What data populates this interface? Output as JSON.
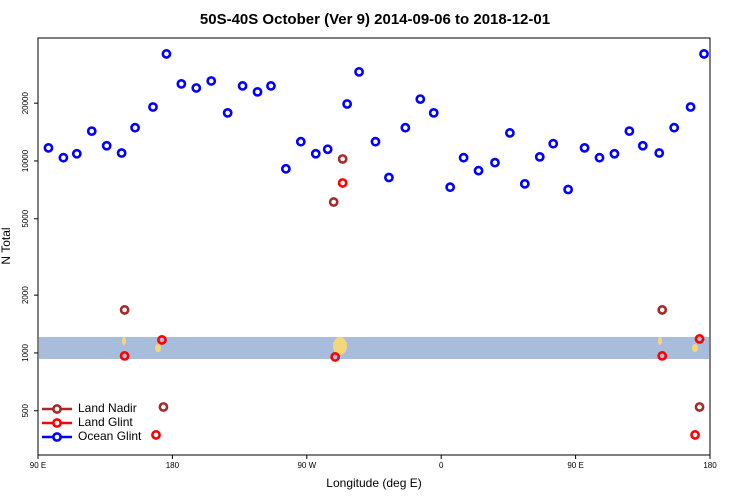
{
  "chart_data": {
    "type": "scatter",
    "title": "50S-40S October (Ver 9)   2014-09-06 to 2018-12-01",
    "xlabel": "Longitude (deg E)",
    "ylabel": "N Total",
    "xlim": [
      90,
      540
    ],
    "ylim": [
      294,
      43700
    ],
    "ylog": true,
    "xticks": [
      {
        "value": 90,
        "label": "90 E"
      },
      180,
      {
        "value": 270,
        "label": "90 W"
      },
      {
        "value": 360,
        "label": "0"
      },
      {
        "value": 450,
        "label": "90 E"
      },
      {
        "value": 540,
        "label": "180"
      }
    ],
    "yticks": [
      500,
      1000,
      2000,
      5000,
      10000,
      20000
    ],
    "legend": "bottomleft",
    "series": [
      {
        "name": "Land Nadir",
        "color": "#a52a2a",
        "x": [
          148,
          174,
          294,
          288,
          508,
          533
        ],
        "values": [
          1675,
          523,
          10240,
          6110,
          1675,
          523
        ]
      },
      {
        "name": "Land Glint",
        "color": "#ff0000",
        "x": [
          148,
          173,
          169,
          289,
          294,
          508,
          533,
          530
        ],
        "values": [
          965,
          1169,
          374,
          953,
          7680,
          965,
          1183,
          374
        ]
      },
      {
        "name": "Ocean Glint",
        "color": "#0000ff",
        "x": [
          97,
          107,
          116,
          126,
          136,
          146,
          155,
          167,
          176,
          186,
          196,
          206,
          217,
          227,
          237,
          246,
          256,
          266,
          276,
          284,
          297,
          305,
          316,
          325,
          336,
          346,
          355,
          366,
          375,
          385,
          396,
          406,
          416,
          426,
          435,
          445,
          456,
          466,
          476,
          486,
          495,
          506,
          516,
          527,
          536
        ],
        "values": [
          11700,
          10400,
          10900,
          14300,
          12000,
          11000,
          14900,
          19100,
          36100,
          25200,
          24000,
          26100,
          17800,
          24600,
          22900,
          24600,
          9100,
          12600,
          10900,
          11500,
          19800,
          29100,
          12600,
          8200,
          14900,
          21000,
          17800,
          7300,
          10400,
          8900,
          9800,
          14000,
          7600,
          10500,
          12300,
          7100,
          11700,
          10400,
          10900,
          14300,
          12000,
          11000,
          14900,
          19100,
          36100
        ]
      }
    ]
  }
}
